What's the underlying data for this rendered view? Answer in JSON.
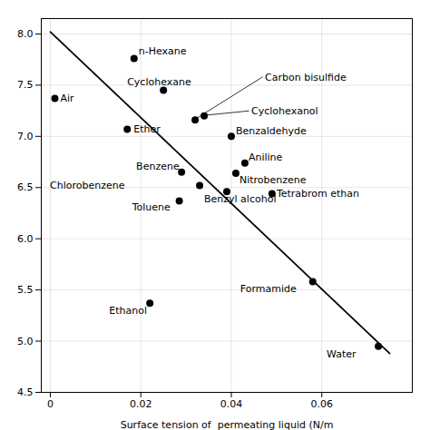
{
  "chart_data": {
    "type": "scatter",
    "xlabel": "Surface tension of  permeating liquid (N/m",
    "xlim": [
      -0.002,
      0.08
    ],
    "ylim": [
      4.5,
      8.15
    ],
    "xticks": [
      0,
      0.02,
      0.04,
      0.06
    ],
    "yticks": [
      4.5,
      {
        "value": 5.0,
        "label": "5.0"
      },
      5.5,
      {
        "value": 6.0,
        "label": "6.0"
      },
      6.5,
      {
        "value": 7.0,
        "label": "7.0"
      },
      7.5,
      {
        "value": 8.0,
        "label": "8.0"
      }
    ],
    "grid": true,
    "series": [
      {
        "type": "line",
        "color": "black",
        "x": [
          0.0,
          0.075
        ],
        "values": [
          8.02,
          4.88
        ]
      },
      {
        "type": "scatter",
        "color": "#000000",
        "x": [
          0.001,
          0.017,
          0.0185,
          0.025,
          0.029,
          0.033,
          0.0285,
          0.032,
          0.04,
          0.034,
          0.043,
          0.041,
          0.039,
          0.049,
          0.058,
          0.022,
          0.0725
        ],
        "values": [
          7.37,
          7.07,
          7.76,
          7.45,
          6.65,
          6.52,
          6.37,
          7.16,
          7.0,
          7.2,
          6.74,
          6.64,
          6.46,
          6.44,
          5.58,
          5.37,
          4.95
        ],
        "labels": [
          "Air",
          "Ether",
          "n-Hexane",
          "Cyclohexane",
          "Benzene",
          "Chlorobenzene",
          "Toluene",
          "Carbon bisulfide",
          "Benzaldehyde",
          "Cyclohexanol",
          "Aniline",
          "Nitrobenzene",
          "Benzyl alcohol",
          "Tetrabrom ethan",
          "Formamide",
          "Ethanol",
          "Water"
        ]
      }
    ]
  }
}
